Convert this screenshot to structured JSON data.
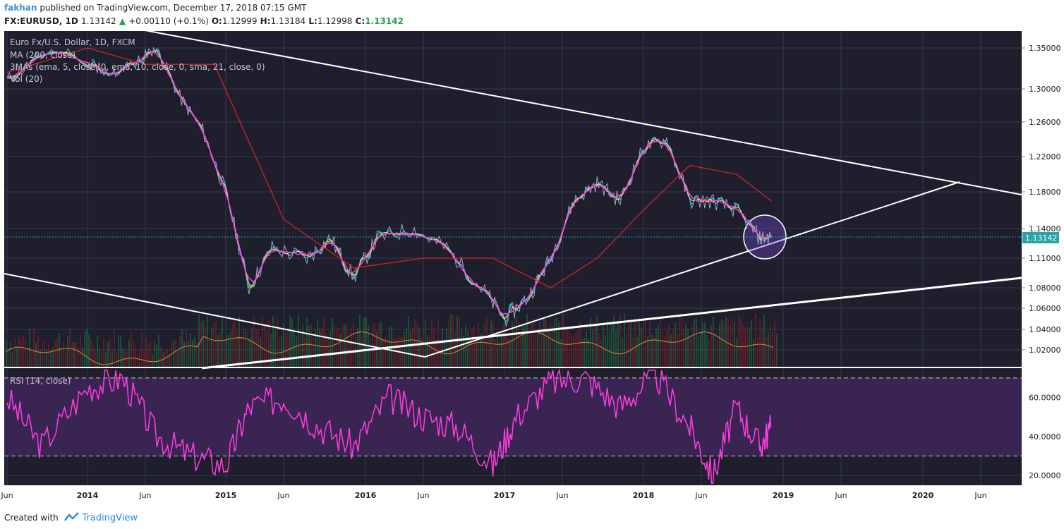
{
  "header": {
    "author": "fakhan",
    "published": "published on TradingView.com, December 17, 2018 07:15 GMT",
    "symbol": "FX:EURUSD, 1D",
    "last": "1.13142",
    "change": "+0.00110 (+0.1%)",
    "o_label": "O:",
    "o": "1.12999",
    "h_label": "H:",
    "h": "1.13184",
    "l_label": "L:",
    "l": "1.12998",
    "c_label": "C:",
    "c": "1.13142"
  },
  "legend": {
    "line1": "Euro Fx/U.S. Dollar, 1D, FXCM",
    "line2": "MA (200, close)",
    "line3": "3MAs (ema, 5, close, 0, ema, 10, close, 0, sma, 21, close, 0)",
    "line4": "Vol (20)",
    "rsi": "RSI (14, close)"
  },
  "colors": {
    "background": "#1e1e2d",
    "grid": "#363a4a",
    "ma200": "#c62828",
    "ema5": "#26c6da",
    "ema10": "#e6e65a",
    "sma21": "#ff3ee0",
    "rsi": "#ff3ee0",
    "rsi_band": "#3a2452",
    "volume_avg": "#d78a3a",
    "trendline": "#ffffff",
    "price_label": "#2aa3a8",
    "axis_text": "#222222"
  },
  "price_axis": {
    "labels": [
      "1.35000",
      "1.30000",
      "1.26000",
      "1.22000",
      "1.18000",
      "1.14000",
      "1.11000",
      "1.08000",
      "1.06000",
      "1.04000",
      "1.02000"
    ]
  },
  "price_label": "1.13142",
  "rsi_axis": {
    "labels": [
      "60.0000",
      "40.0000",
      "20.0000"
    ]
  },
  "time_axis": {
    "labels": [
      "Jun",
      "2014",
      "Jun",
      "2015",
      "Jun",
      "2016",
      "Jun",
      "2017",
      "Jun",
      "2018",
      "Jun",
      "2019",
      "Jun",
      "2020",
      "Jun"
    ]
  },
  "footer": {
    "created": "Created with",
    "brand": "TradingView"
  },
  "chart_data": [
    {
      "type": "line",
      "title": "Euro Fx/U.S. Dollar, 1D, FXCM",
      "ylim": [
        1.0,
        1.37
      ],
      "y_ticks": [
        1.35,
        1.3,
        1.26,
        1.22,
        1.18,
        1.14,
        1.11,
        1.08,
        1.06,
        1.04,
        1.02
      ],
      "x_ticks": [
        "Jun",
        "2014",
        "Jun",
        "2015",
        "Jun",
        "2016",
        "Jun",
        "2017",
        "Jun",
        "2018",
        "Jun",
        "2019",
        "Jun",
        "2020",
        "Jun"
      ],
      "series": [
        {
          "name": "EURUSD",
          "x": [
            "2013-06",
            "2013-09",
            "2014-01",
            "2014-03",
            "2014-05",
            "2014-07",
            "2014-09",
            "2014-11",
            "2015-01",
            "2015-03",
            "2015-05",
            "2015-08",
            "2015-10",
            "2015-12",
            "2016-02",
            "2016-05",
            "2016-08",
            "2016-11",
            "2017-01",
            "2017-03",
            "2017-05",
            "2017-07",
            "2017-09",
            "2017-11",
            "2018-01",
            "2018-03",
            "2018-05",
            "2018-07",
            "2018-09",
            "2018-11",
            "2018-12"
          ],
          "values": [
            1.31,
            1.34,
            1.37,
            1.38,
            1.37,
            1.35,
            1.29,
            1.25,
            1.18,
            1.08,
            1.12,
            1.11,
            1.13,
            1.09,
            1.13,
            1.14,
            1.12,
            1.08,
            1.05,
            1.07,
            1.11,
            1.17,
            1.19,
            1.17,
            1.23,
            1.24,
            1.17,
            1.17,
            1.16,
            1.13,
            1.1314
          ]
        },
        {
          "name": "MA (200, close)",
          "x": [
            "2013-06",
            "2014-01",
            "2014-06",
            "2014-12",
            "2015-06",
            "2015-12",
            "2016-06",
            "2016-12",
            "2017-05",
            "2017-09",
            "2018-01",
            "2018-05",
            "2018-09",
            "2018-12"
          ],
          "values": [
            1.32,
            1.35,
            1.37,
            1.33,
            1.15,
            1.1,
            1.11,
            1.11,
            1.08,
            1.11,
            1.16,
            1.21,
            1.2,
            1.17
          ]
        }
      ],
      "last_price": 1.13142
    },
    {
      "type": "line",
      "title": "RSI (14, close)",
      "ylim": [
        15,
        75
      ],
      "y_ticks": [
        60,
        40,
        20
      ],
      "band": [
        30,
        70
      ],
      "series": [
        {
          "name": "RSI (14, close)",
          "x": [
            "2013-06",
            "2013-09",
            "2014-01",
            "2014-04",
            "2014-07",
            "2014-10",
            "2015-01",
            "2015-03",
            "2015-06",
            "2015-09",
            "2015-12",
            "2016-03",
            "2016-06",
            "2016-09",
            "2016-12",
            "2017-02",
            "2017-05",
            "2017-08",
            "2017-11",
            "2018-02",
            "2018-05",
            "2018-07",
            "2018-09",
            "2018-11",
            "2018-12"
          ],
          "values": [
            60,
            35,
            65,
            70,
            40,
            30,
            25,
            55,
            60,
            45,
            35,
            60,
            50,
            45,
            25,
            50,
            68,
            70,
            55,
            72,
            45,
            20,
            55,
            35,
            45
          ]
        }
      ]
    }
  ]
}
